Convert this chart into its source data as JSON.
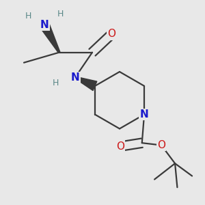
{
  "bg_color": "#e8e8e8",
  "atom_colors": {
    "C": "#3a3a3a",
    "N": "#1a1acc",
    "O": "#cc1a1a",
    "H": "#5a8888"
  },
  "bond_color": "#3a3a3a",
  "bond_width": 1.6,
  "figsize": [
    3.0,
    3.0
  ],
  "dpi": 100
}
